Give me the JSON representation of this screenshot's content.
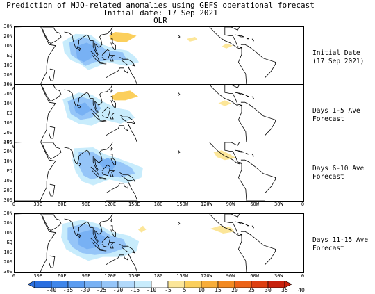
{
  "title": {
    "line1": "Prediction of MJO-related anomalies using GEFS operational forecast",
    "line2": "Initial date: 17 Sep 2021",
    "line3": "OLR"
  },
  "axes": {
    "lat_labels": [
      "30N",
      "20N",
      "10N",
      "EQ",
      "10S",
      "20S",
      "30S"
    ],
    "lon_labels": [
      "0",
      "30E",
      "60E",
      "90E",
      "120E",
      "150E",
      "180",
      "150W",
      "120W",
      "90W",
      "60W",
      "30W",
      "0"
    ]
  },
  "panels": [
    {
      "label_line1": "Initial Date",
      "label_line2": "(17 Sep 2021)"
    },
    {
      "label_line1": "Days 1-5 Ave",
      "label_line2": "Forecast"
    },
    {
      "label_line1": "Days 6-10 Ave",
      "label_line2": "Forecast"
    },
    {
      "label_line1": "Days 11-15 Ave",
      "label_line2": "Forecast"
    }
  ],
  "colorbar": {
    "labels": [
      "-40",
      "-35",
      "-30",
      "-25",
      "-20",
      "-15",
      "-10",
      "-5",
      "5",
      "10",
      "15",
      "20",
      "25",
      "30",
      "35",
      "40"
    ],
    "colors": [
      "#2a6fe0",
      "#3f86ea",
      "#5b9cf0",
      "#78b1f4",
      "#95c5f8",
      "#b1d9fb",
      "#c8ecfc",
      "#ffffff",
      "#fce699",
      "#fbcf5c",
      "#f8ad38",
      "#f38a22",
      "#ec6317",
      "#de3f10",
      "#c8210c"
    ]
  },
  "colors": {
    "negative_light": "#c8ecfc",
    "negative_mid": "#95c5f8",
    "negative_dark": "#78b1f4",
    "positive_light": "#fce699",
    "positive_mid": "#fbcf5c"
  }
}
